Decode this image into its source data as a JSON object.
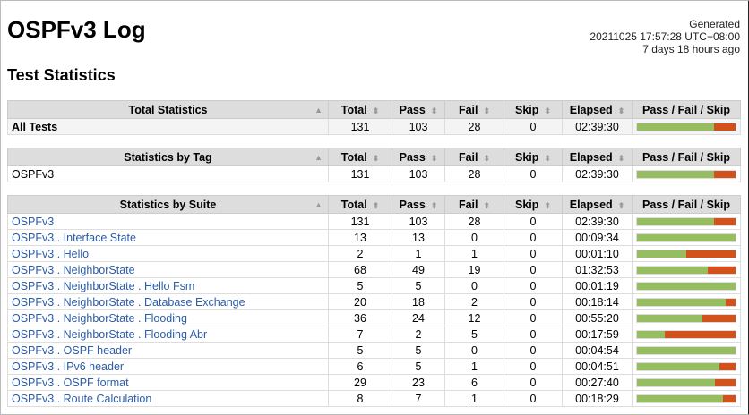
{
  "title": "OSPFv3 Log",
  "generated": {
    "label": "Generated",
    "timestamp": "20211025 17:57:28 UTC+08:00",
    "ago": "7 days 18 hours ago"
  },
  "section_title": "Test Statistics",
  "columns": [
    "Total",
    "Pass",
    "Fail",
    "Skip",
    "Elapsed",
    "Pass / Fail / Skip"
  ],
  "colors": {
    "pass": "#97bd61",
    "fail": "#ce3e01",
    "skip": "#fed84f",
    "link": "#2b5ca8"
  },
  "tables": [
    {
      "header": "Total Statistics",
      "rows": [
        {
          "name": "All Tests",
          "total": 131,
          "pass": 103,
          "fail": 28,
          "skip": 0,
          "elapsed": "02:39:30"
        }
      ]
    },
    {
      "header": "Statistics by Tag",
      "rows": [
        {
          "name": "OSPFv3",
          "total": 131,
          "pass": 103,
          "fail": 28,
          "skip": 0,
          "elapsed": "02:39:30"
        }
      ]
    },
    {
      "header": "Statistics by Suite",
      "rows": [
        {
          "name": "OSPFv3",
          "total": 131,
          "pass": 103,
          "fail": 28,
          "skip": 0,
          "elapsed": "02:39:30"
        },
        {
          "name": "OSPFv3 . Interface State",
          "total": 13,
          "pass": 13,
          "fail": 0,
          "skip": 0,
          "elapsed": "00:09:34"
        },
        {
          "name": "OSPFv3 . Hello",
          "total": 2,
          "pass": 1,
          "fail": 1,
          "skip": 0,
          "elapsed": "00:01:10"
        },
        {
          "name": "OSPFv3 . NeighborState",
          "total": 68,
          "pass": 49,
          "fail": 19,
          "skip": 0,
          "elapsed": "01:32:53"
        },
        {
          "name": "OSPFv3 . NeighborState . Hello Fsm",
          "total": 5,
          "pass": 5,
          "fail": 0,
          "skip": 0,
          "elapsed": "00:01:19"
        },
        {
          "name": "OSPFv3 . NeighborState . Database Exchange",
          "total": 20,
          "pass": 18,
          "fail": 2,
          "skip": 0,
          "elapsed": "00:18:14"
        },
        {
          "name": "OSPFv3 . NeighborState . Flooding",
          "total": 36,
          "pass": 24,
          "fail": 12,
          "skip": 0,
          "elapsed": "00:55:20"
        },
        {
          "name": "OSPFv3 . NeighborState . Flooding Abr",
          "total": 7,
          "pass": 2,
          "fail": 5,
          "skip": 0,
          "elapsed": "00:17:59"
        },
        {
          "name": "OSPFv3 . OSPF header",
          "total": 5,
          "pass": 5,
          "fail": 0,
          "skip": 0,
          "elapsed": "00:04:54"
        },
        {
          "name": "OSPFv3 . IPv6 header",
          "total": 6,
          "pass": 5,
          "fail": 1,
          "skip": 0,
          "elapsed": "00:04:51"
        },
        {
          "name": "OSPFv3 . OSPF format",
          "total": 29,
          "pass": 23,
          "fail": 6,
          "skip": 0,
          "elapsed": "00:27:40"
        },
        {
          "name": "OSPFv3 . Route Calculation",
          "total": 8,
          "pass": 7,
          "fail": 1,
          "skip": 0,
          "elapsed": "00:18:29"
        }
      ]
    }
  ]
}
